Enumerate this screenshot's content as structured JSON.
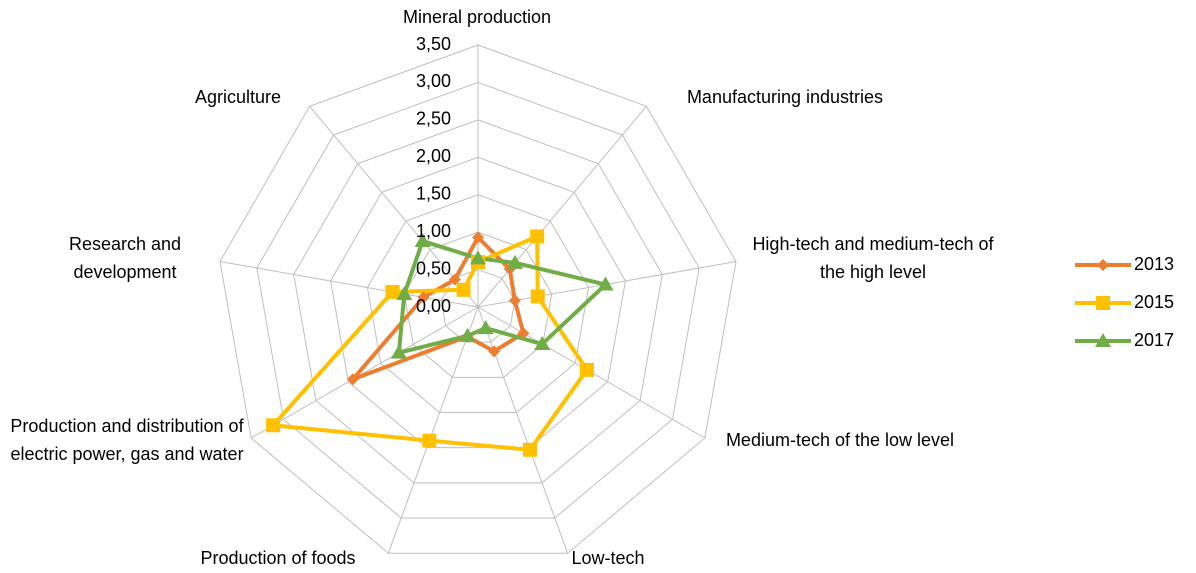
{
  "chart_data": {
    "type": "radar",
    "categories": [
      "Mineral production",
      "Manufacturing industries",
      "High-tech and medium-tech of the high level",
      "Medium-tech of the low level",
      "Low-tech",
      "Production of foods",
      "Production and distribution of electric power, gas and water",
      "Research and development",
      "Agriculture"
    ],
    "series": [
      {
        "name": "2013",
        "color": "#ED7D31",
        "marker": "diamond",
        "values": [
          0.93,
          0.66,
          0.5,
          0.7,
          0.63,
          0.42,
          1.93,
          0.74,
          0.48
        ]
      },
      {
        "name": "2015",
        "color": "#FFC000",
        "marker": "square",
        "values": [
          0.6,
          1.23,
          0.81,
          1.68,
          2.03,
          1.9,
          3.16,
          1.16,
          0.3
        ]
      },
      {
        "name": "2017",
        "color": "#70AD47",
        "marker": "triangle",
        "values": [
          0.65,
          0.77,
          1.73,
          0.99,
          0.3,
          0.41,
          1.22,
          1.0,
          1.15
        ]
      }
    ],
    "ylim": [
      0,
      3.5
    ],
    "yticks": [
      {
        "value": 0,
        "label": "0,00"
      },
      {
        "value": 0.5,
        "label": "0,50"
      },
      {
        "value": 1,
        "label": "1,00"
      },
      {
        "value": 1.5,
        "label": "1,50"
      },
      {
        "value": 2,
        "label": "2,00"
      },
      {
        "value": 2.5,
        "label": "2,50"
      },
      {
        "value": 3,
        "label": "3,00"
      },
      {
        "value": 3.5,
        "label": "3,50"
      }
    ],
    "grid": true,
    "legend": "right"
  }
}
